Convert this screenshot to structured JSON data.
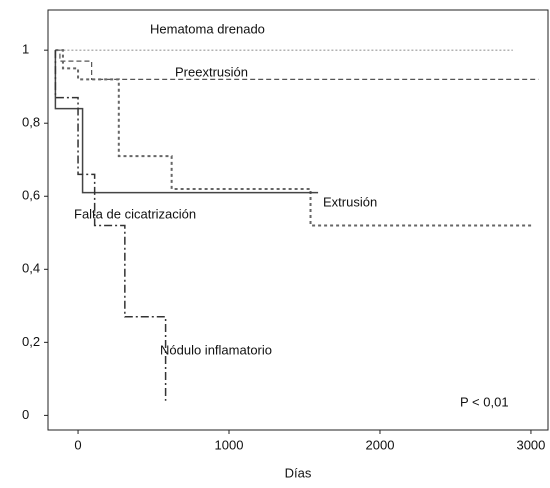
{
  "chart_data": {
    "type": "step",
    "x_label": "Días",
    "annotations": [
      "P < 0,01"
    ],
    "xlim": [
      -199,
      3113
    ],
    "xticks": [
      0,
      1000,
      2000,
      3000
    ],
    "ylim": [
      -0.04,
      1.11
    ],
    "yticks": [
      0,
      {
        "value": 0.2,
        "label": "0,2"
      },
      {
        "value": 0.4,
        "label": "0,4"
      },
      {
        "value": 0.6,
        "label": "0,6"
      },
      {
        "value": 0.8,
        "label": "0,8"
      },
      1
    ],
    "series": [
      {
        "name": "Hematoma drenado",
        "color": "#9a9a9a",
        "dash": "2,2",
        "width": 1.2,
        "x": [
          -150,
          2880
        ],
        "values": [
          1,
          1
        ]
      },
      {
        "name": "Preextrusión",
        "color": "#555555",
        "dash": "5,3",
        "width": 1.2,
        "x": [
          -150,
          -120,
          -120,
          90,
          90,
          3050
        ],
        "values": [
          1,
          1,
          0.97,
          0.97,
          0.92,
          0.92
        ]
      },
      {
        "name": "Extrusión",
        "color": "#666666",
        "dash": "3,3",
        "width": 2,
        "x": [
          -150,
          -100,
          -100,
          0,
          0,
          270,
          270,
          620,
          620,
          1540,
          1540,
          3020
        ],
        "values": [
          1,
          1,
          0.95,
          0.95,
          0.92,
          0.92,
          0.71,
          0.71,
          0.62,
          0.62,
          0.52,
          0.52
        ]
      },
      {
        "name": "Falta de cicatrización",
        "color": "#444444",
        "dash": "none",
        "width": 1.5,
        "x": [
          -150,
          -150,
          30,
          30,
          1590
        ],
        "values": [
          1,
          0.84,
          0.84,
          0.61,
          0.61
        ]
      },
      {
        "name": "Nódulo inflamatorio",
        "color": "#333333",
        "dash": "8,3,2,3",
        "width": 1.5,
        "x": [
          -150,
          -150,
          0,
          0,
          110,
          110,
          310,
          310,
          580,
          580
        ],
        "values": [
          1,
          0.87,
          0.87,
          0.66,
          0.66,
          0.52,
          0.52,
          0.27,
          0.27,
          0.04
        ]
      }
    ]
  }
}
